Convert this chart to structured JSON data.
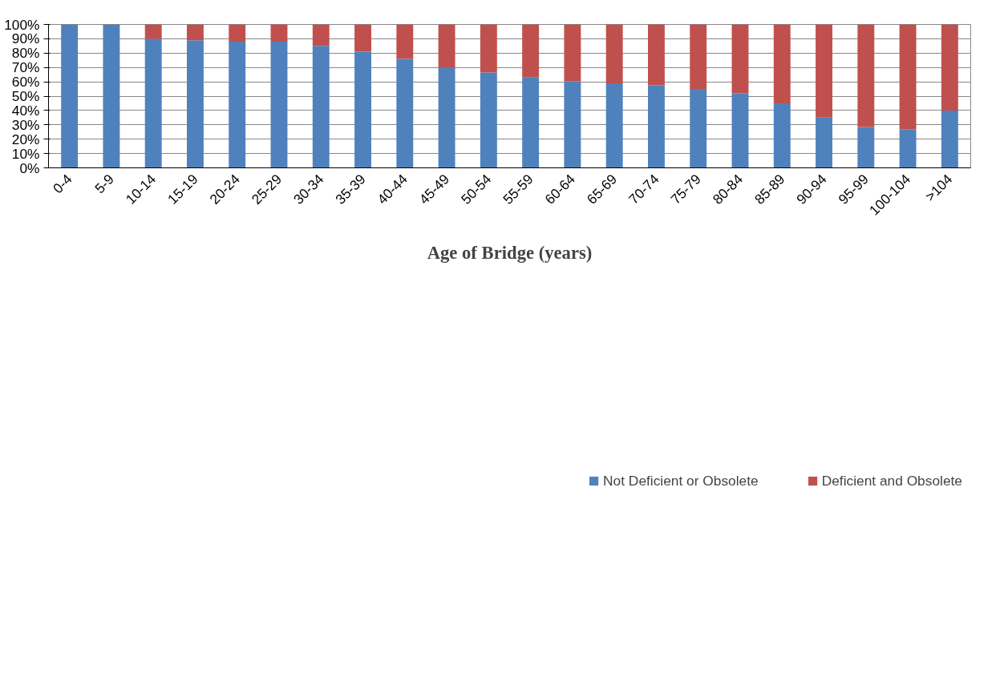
{
  "chart_data": {
    "type": "bar",
    "stacked": true,
    "xlabel": "Age of Bridge (years)",
    "categories": [
      "0-4",
      "5-9",
      "10-14",
      "15-19",
      "20-24",
      "25-29",
      "30-34",
      "35-39",
      "40-44",
      "45-49",
      "50-54",
      "55-59",
      "60-64",
      "65-69",
      "70-74",
      "75-79",
      "80-84",
      "85-89",
      "90-94",
      "95-99",
      "100-104",
      ">104"
    ],
    "series": [
      {
        "name": "Not Deficient or Obsolete",
        "color": "#4f81bd",
        "values": [
          100,
          100,
          90,
          89,
          88,
          88,
          85,
          81,
          76,
          70,
          66.5,
          63,
          60.5,
          59,
          57.5,
          55,
          52,
          45,
          35,
          28.5,
          27,
          40
        ]
      },
      {
        "name": "Deficient and Obsolete",
        "color": "#c0504d",
        "values": [
          0,
          0,
          10,
          11,
          12,
          12,
          15,
          19,
          24,
          30,
          33.5,
          37,
          39.5,
          41,
          42.5,
          45,
          48,
          55,
          65,
          71.5,
          73,
          60
        ]
      }
    ],
    "ylim": [
      0,
      100
    ],
    "yticks": [
      {
        "value": 0,
        "label": "0%"
      },
      {
        "value": 10,
        "label": "10%"
      },
      {
        "value": 20,
        "label": "20%"
      },
      {
        "value": 30,
        "label": "30%"
      },
      {
        "value": 40,
        "label": "40%"
      },
      {
        "value": 50,
        "label": "50%"
      },
      {
        "value": 60,
        "label": "60%"
      },
      {
        "value": 70,
        "label": "70%"
      },
      {
        "value": 80,
        "label": "80%"
      },
      {
        "value": 90,
        "label": "90%"
      },
      {
        "value": 100,
        "label": "100%"
      }
    ],
    "grid": "y",
    "legend": "bottom"
  }
}
